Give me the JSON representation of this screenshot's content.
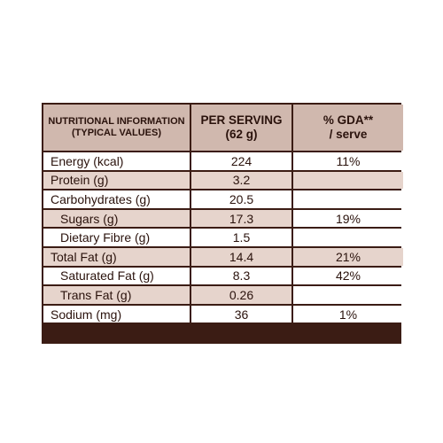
{
  "header": {
    "col1_line1": "NUTRITIONAL INFORMATION",
    "col1_line2": "(TYPICAL VALUES)",
    "col2_line1": "PER SERVING",
    "col2_line2": "(62 g)",
    "col3_line1": "% GDA**",
    "col3_line2": "/ serve"
  },
  "rows": [
    {
      "label": "Energy (kcal)",
      "value": "224",
      "gda": "11%"
    },
    {
      "label": "Protein (g)",
      "value": "3.2",
      "gda": ""
    },
    {
      "label": "Carbohydrates (g)",
      "value": "20.5",
      "gda": ""
    },
    {
      "label": "Sugars (g)",
      "value": "17.3",
      "gda": "19%"
    },
    {
      "label": "Dietary Fibre (g)",
      "value": "1.5",
      "gda": ""
    },
    {
      "label": "Total Fat (g)",
      "value": "14.4",
      "gda": "21%"
    },
    {
      "label": "Saturated Fat (g)",
      "value": "8.3",
      "gda": "42%"
    },
    {
      "label": "Trans Fat (g)",
      "value": "0.26",
      "gda": ""
    },
    {
      "label": "Sodium (mg)",
      "value": "36",
      "gda": "1%"
    }
  ],
  "colors": {
    "border": "#3b1c14",
    "header_bg": "#d0b8ae",
    "shaded_row_bg": "#e6d4cc",
    "text": "#2a120c"
  }
}
